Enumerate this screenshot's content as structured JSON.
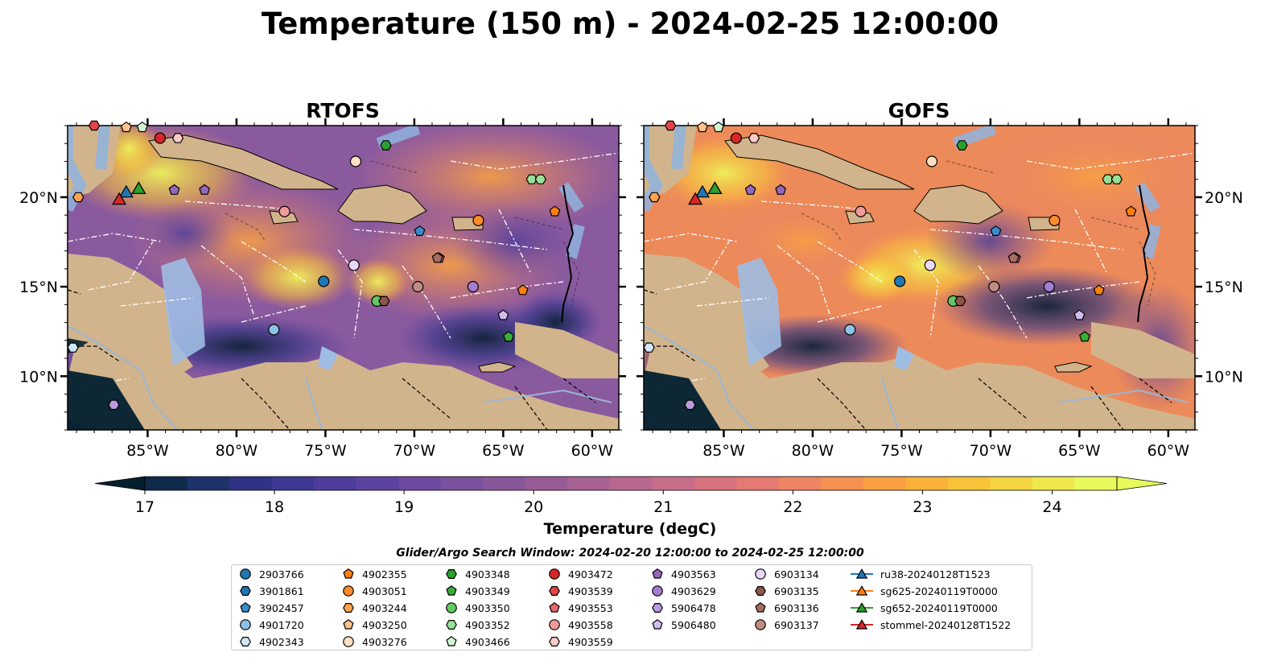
{
  "title": "Temperature (150 m) - 2024-02-25 12:00:00",
  "panels": [
    {
      "title": "RTOFS"
    },
    {
      "title": "GOFS"
    }
  ],
  "axes": {
    "lon_ticks": [
      "85°W",
      "80°W",
      "75°W",
      "70°W",
      "65°W",
      "60°W"
    ],
    "lat_ticks": [
      "20°N",
      "15°N",
      "10°N"
    ],
    "lon_values": [
      -85,
      -80,
      -75,
      -70,
      -65,
      -60
    ],
    "lat_values": [
      20,
      15,
      10
    ],
    "lon_range": [
      -89.5,
      -58.5
    ],
    "lat_range": [
      7,
      24
    ]
  },
  "colorbar": {
    "label": "Temperature (degC)",
    "ticks": [
      "17",
      "18",
      "19",
      "20",
      "21",
      "22",
      "23",
      "24"
    ],
    "range": [
      16.75,
      24.5
    ],
    "extend": "both",
    "colors": [
      "#03202f",
      "#0f2a4b",
      "#1e326a",
      "#2f3385",
      "#3e3793",
      "#4e3d9c",
      "#5c43a0",
      "#6b4a9f",
      "#7a519c",
      "#88569a",
      "#975c97",
      "#a86294",
      "#b86890",
      "#c86d89",
      "#d7727f",
      "#e47a72",
      "#ef8462",
      "#f59151",
      "#f8a043",
      "#f9b13a",
      "#f8c33a",
      "#f4d540",
      "#eee84d",
      "#e8fa5b"
    ]
  },
  "search_window": "Glider/Argo Search Window: 2024-02-20 12:00:00 to 2024-02-25 12:00:00",
  "legend": [
    {
      "label": "2903766",
      "marker": "circle",
      "color": "#1f77b4"
    },
    {
      "label": "3901861",
      "marker": "hexagon",
      "color": "#1f77b4"
    },
    {
      "label": "3902457",
      "marker": "pentagon",
      "color": "#3a8ccd"
    },
    {
      "label": "4901720",
      "marker": "circle",
      "color": "#8dc2e8"
    },
    {
      "label": "4902343",
      "marker": "hexagon",
      "color": "#cfe7f9"
    },
    {
      "label": "4902355",
      "marker": "pentagon",
      "color": "#ff7f0e"
    },
    {
      "label": "4903051",
      "marker": "circle",
      "color": "#ff8c2a"
    },
    {
      "label": "4903244",
      "marker": "hexagon",
      "color": "#ffa34f"
    },
    {
      "label": "4903250",
      "marker": "pentagon",
      "color": "#ffc08a"
    },
    {
      "label": "4903276",
      "marker": "circle",
      "color": "#ffe0c2"
    },
    {
      "label": "4903348",
      "marker": "hexagon",
      "color": "#2ca02c"
    },
    {
      "label": "4903349",
      "marker": "pentagon",
      "color": "#35b035"
    },
    {
      "label": "4903350",
      "marker": "circle",
      "color": "#60c960"
    },
    {
      "label": "4903352",
      "marker": "hexagon",
      "color": "#98e098"
    },
    {
      "label": "4903466",
      "marker": "pentagon",
      "color": "#d2f5d2"
    },
    {
      "label": "4903472",
      "marker": "circle",
      "color": "#d62728"
    },
    {
      "label": "4903539",
      "marker": "hexagon",
      "color": "#e04547"
    },
    {
      "label": "4903553",
      "marker": "pentagon",
      "color": "#e8696a"
    },
    {
      "label": "4903558",
      "marker": "circle",
      "color": "#f29a9a"
    },
    {
      "label": "4903559",
      "marker": "hexagon",
      "color": "#fccaca"
    },
    {
      "label": "4903563",
      "marker": "pentagon",
      "color": "#9467bd"
    },
    {
      "label": "4903629",
      "marker": "circle",
      "color": "#a37dd0"
    },
    {
      "label": "5906478",
      "marker": "hexagon",
      "color": "#b99be0"
    },
    {
      "label": "5906480",
      "marker": "pentagon",
      "color": "#d2bdf0"
    },
    {
      "label": "6903134",
      "marker": "circle",
      "color": "#ead8fa"
    },
    {
      "label": "6903135",
      "marker": "hexagon",
      "color": "#8c564b"
    },
    {
      "label": "6903136",
      "marker": "pentagon",
      "color": "#a36f63"
    },
    {
      "label": "6903137",
      "marker": "circle",
      "color": "#c08c82"
    },
    {
      "label": "ru38-20240128T1523",
      "marker": "triangle-line",
      "color": "#1f77b4"
    },
    {
      "label": "sg625-20240119T0000",
      "marker": "triangle-line",
      "color": "#ff7f0e"
    },
    {
      "label": "sg652-20240119T0000",
      "marker": "triangle-line",
      "color": "#2ca02c"
    },
    {
      "label": "stommel-20240128T1522",
      "marker": "triangle-line",
      "color": "#d62728"
    }
  ],
  "floats": [
    {
      "label": "2903766",
      "lon": -75.1,
      "lat": 15.3
    },
    {
      "label": "3901861",
      "lon": -71.8,
      "lat": 14.2
    },
    {
      "label": "3902457",
      "lon": -69.7,
      "lat": 18.1
    },
    {
      "label": "4901720",
      "lon": -77.9,
      "lat": 12.6
    },
    {
      "label": "4902343",
      "lon": -89.2,
      "lat": 11.6
    },
    {
      "label": "4902355",
      "lon": -62.1,
      "lat": 19.2
    },
    {
      "label": "4903051",
      "lon": -66.4,
      "lat": 18.7
    },
    {
      "label": "4903244",
      "lon": -88.9,
      "lat": 20.0
    },
    {
      "label": "4903250",
      "lon": -86.2,
      "lat": 23.9
    },
    {
      "label": "4903276",
      "lon": -73.3,
      "lat": 22.0
    },
    {
      "label": "4903348",
      "lon": -71.6,
      "lat": 22.9
    },
    {
      "label": "4903349",
      "lon": -64.7,
      "lat": 12.2
    },
    {
      "label": "4903350",
      "lon": -72.1,
      "lat": 14.2
    },
    {
      "label": "4903352",
      "lon": -63.4,
      "lat": 21.0
    },
    {
      "label": "4903466",
      "lon": -85.3,
      "lat": 23.9
    },
    {
      "label": "4903472",
      "lon": -84.3,
      "lat": 23.3
    },
    {
      "label": "4903539",
      "lon": -88.0,
      "lat": 24.0
    },
    {
      "label": "4903553",
      "lon": -68.6,
      "lat": 16.6
    },
    {
      "label": "4903558",
      "lon": -77.3,
      "lat": 19.2
    },
    {
      "label": "4903559",
      "lon": -83.3,
      "lat": 23.3
    },
    {
      "label": "4903563",
      "lon": -81.8,
      "lat": 20.4
    },
    {
      "label": "4903629",
      "lon": -66.7,
      "lat": 15.0
    },
    {
      "label": "5906478",
      "lon": -86.9,
      "lat": 8.4
    },
    {
      "label": "5906480",
      "lon": -65.0,
      "lat": 13.4
    },
    {
      "label": "6903134",
      "lon": -73.4,
      "lat": 16.2
    },
    {
      "label": "6903135",
      "lon": -71.7,
      "lat": 14.2
    },
    {
      "label": "6903136",
      "lon": -68.7,
      "lat": 16.6
    },
    {
      "label": "6903137",
      "lon": -69.8,
      "lat": 15.0
    },
    {
      "label": "4903352",
      "lon": -62.9,
      "lat": 21.0
    },
    {
      "label": "4902355",
      "lon": -63.9,
      "lat": 14.8
    },
    {
      "label": "4903563",
      "lon": -83.5,
      "lat": 20.4
    }
  ],
  "gliders": [
    {
      "label": "ru38-20240128T1523",
      "lon": -86.2,
      "lat": 20.3
    },
    {
      "label": "sg625-20240119T0000",
      "lon": -85.5,
      "lat": 20.5
    },
    {
      "label": "sg652-20240119T0000",
      "lon": -85.5,
      "lat": 20.5
    },
    {
      "label": "stommel-20240128T1522",
      "lon": -86.6,
      "lat": 19.9
    }
  ]
}
